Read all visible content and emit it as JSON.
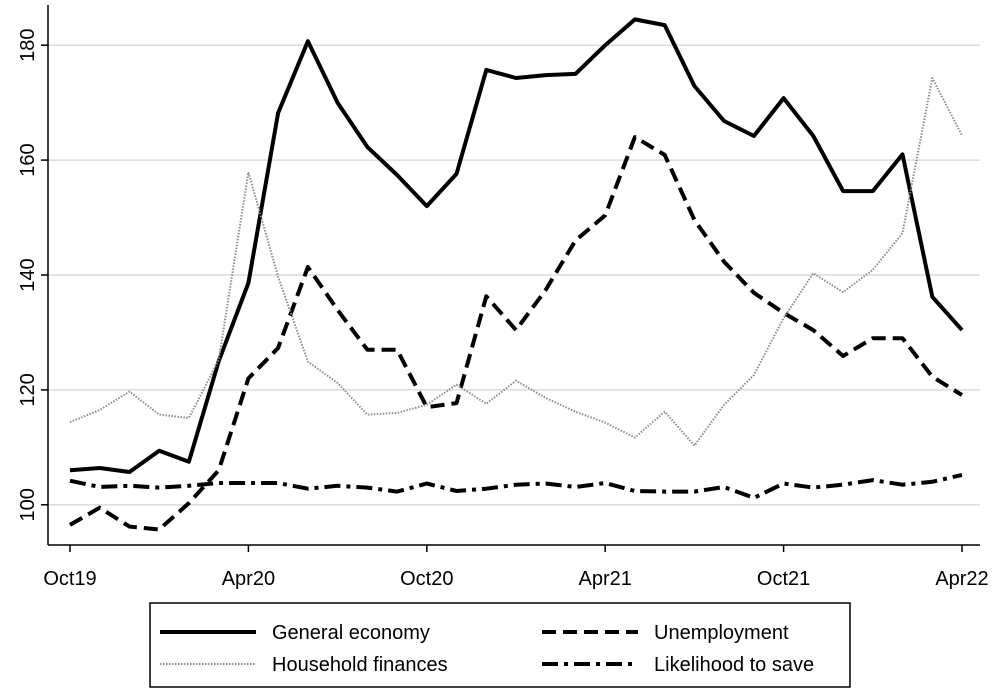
{
  "chart_data": {
    "type": "line",
    "categories": [
      "Oct19",
      null,
      null,
      null,
      null,
      null,
      "Apr20",
      null,
      null,
      null,
      null,
      null,
      "Oct20",
      null,
      null,
      null,
      null,
      null,
      "Apr21",
      null,
      null,
      null,
      null,
      null,
      "Oct21",
      null,
      null,
      null,
      null,
      null,
      "Apr22"
    ],
    "series": [
      {
        "name": "General economy",
        "color": "#000000",
        "style": "solid",
        "values": [
          106,
          106.4,
          105.7,
          109.4,
          107.5,
          125,
          138.6,
          168.2,
          180.7,
          170,
          162.3,
          157.4,
          152,
          157.6,
          175.7,
          174.3,
          174.8,
          175,
          180,
          184.5,
          183.5,
          172.9,
          166.8,
          164.2,
          170.8,
          164.2,
          154.6,
          154.6,
          161,
          136.2,
          130.4
        ]
      },
      {
        "name": "Unemployment",
        "color": "#000000",
        "style": "dashed",
        "values": [
          96.5,
          99.5,
          96.2,
          95.7,
          100.3,
          106,
          122,
          127.3,
          141.4,
          133.9,
          127,
          127,
          117,
          117.7,
          136.3,
          130.4,
          137.4,
          146,
          150.4,
          164,
          160.9,
          149.6,
          142.3,
          136.9,
          133.4,
          130.4,
          125.9,
          129,
          129,
          122.3,
          119.1
        ]
      },
      {
        "name": "Household finances",
        "color": "#8c8c8c",
        "style": "dotted",
        "values": [
          114.4,
          116.5,
          119.7,
          115.7,
          115.1,
          125.2,
          157.9,
          139.7,
          124.9,
          121.2,
          115.7,
          116,
          117.4,
          120.9,
          117.6,
          121.6,
          118.6,
          116.2,
          114.3,
          111.7,
          116.2,
          110.3,
          117.4,
          122.6,
          132.5,
          140.3,
          137,
          140.9,
          147.3,
          174.3,
          164.3
        ]
      },
      {
        "name": "Likelihood to save",
        "color": "#000000",
        "style": "dashdot",
        "values": [
          104.2,
          103.1,
          103.3,
          103,
          103.3,
          103.8,
          103.8,
          103.8,
          102.8,
          103.3,
          103,
          102.3,
          103.7,
          102.4,
          102.8,
          103.5,
          103.7,
          103.1,
          103.8,
          102.4,
          102.3,
          102.3,
          103.1,
          101.2,
          103.7,
          103,
          103.5,
          104.3,
          103.5,
          104,
          105.2
        ]
      }
    ],
    "ylim": [
      93,
      187
    ],
    "yticks": [
      100,
      120,
      140,
      160,
      180
    ],
    "grid": true,
    "legend": "bottom"
  }
}
